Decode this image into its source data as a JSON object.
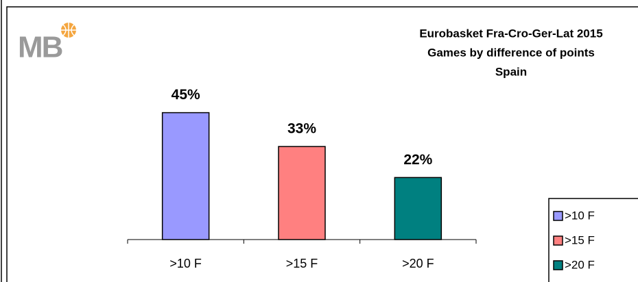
{
  "chart_data": {
    "type": "bar",
    "logo": "MB",
    "title": [
      "Eurobasket Fra-Cro-Ger-Lat 2015",
      "Games by difference of points",
      "Spain"
    ],
    "categories": [
      ">10 F",
      ">15 F",
      ">20 F"
    ],
    "values": [
      45,
      33,
      22
    ],
    "value_labels": [
      "45%",
      "33%",
      "22%"
    ],
    "colors": [
      "#9999ff",
      "#ff8080",
      "#008080"
    ],
    "ylim": [
      0,
      50
    ],
    "legend": "right"
  }
}
